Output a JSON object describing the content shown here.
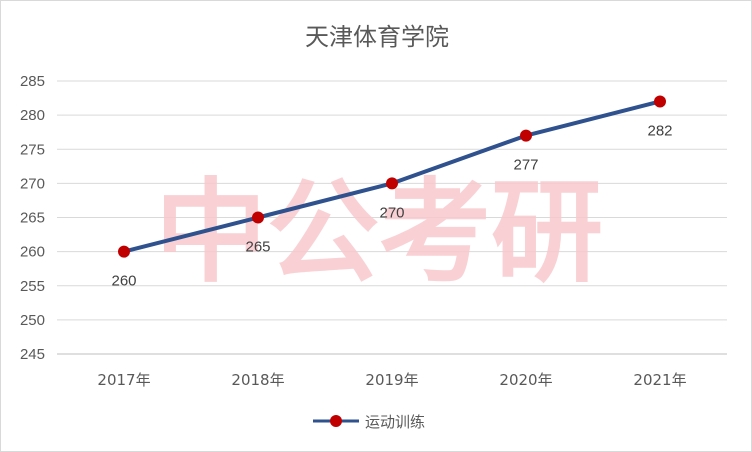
{
  "chart_data": {
    "type": "line",
    "title": "天津体育学院",
    "categories": [
      "2017年",
      "2018年",
      "2019年",
      "2020年",
      "2021年"
    ],
    "series": [
      {
        "name": "运动训练",
        "values": [
          260,
          265,
          270,
          277,
          282
        ],
        "color": "#2f528f",
        "marker_color": "#c00000"
      }
    ],
    "y_ticks": [
      245,
      250,
      255,
      260,
      265,
      270,
      275,
      280,
      285
    ],
    "ylim": [
      245,
      285
    ],
    "grid": true,
    "legend_position": "bottom",
    "data_labels": true,
    "watermark": "中公考研"
  }
}
